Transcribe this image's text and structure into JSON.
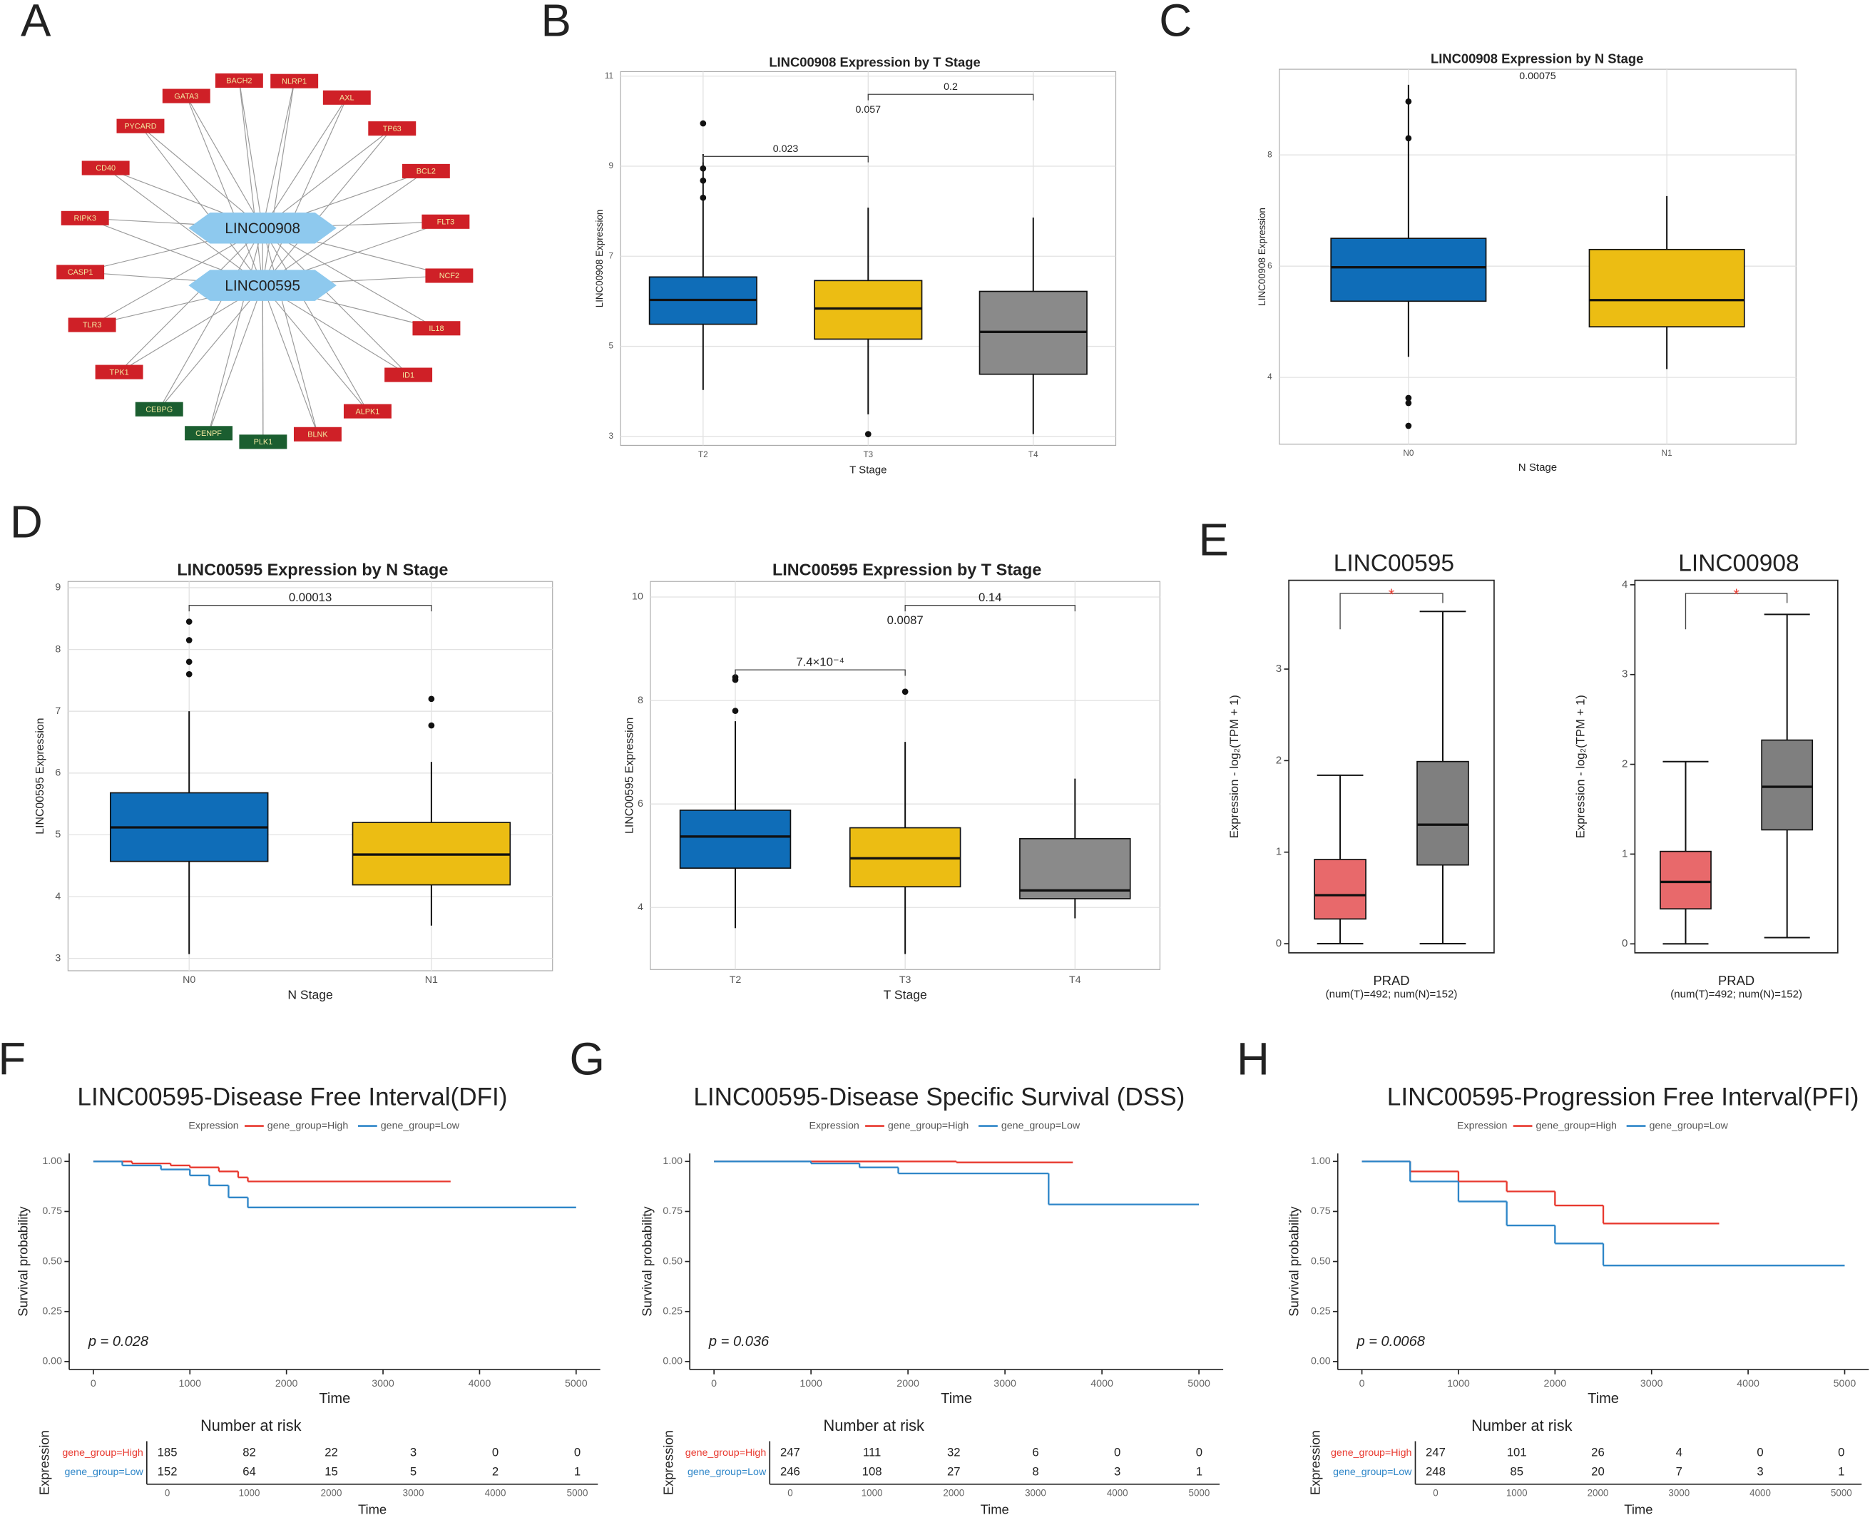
{
  "panel_labels": [
    "A",
    "B",
    "C",
    "D",
    "E",
    "F",
    "G",
    "H"
  ],
  "network": {
    "hubs": [
      "LINC00908",
      "LINC00595"
    ],
    "hub_color": "#8ec9ee",
    "nodes": [
      {
        "label": "BACH2",
        "color": "#cf2027"
      },
      {
        "label": "NLRP1",
        "color": "#cf2027"
      },
      {
        "label": "AXL",
        "color": "#cf2027"
      },
      {
        "label": "TP63",
        "color": "#cf2027"
      },
      {
        "label": "BCL2",
        "color": "#cf2027"
      },
      {
        "label": "FLT3",
        "color": "#cf2027"
      },
      {
        "label": "NCF2",
        "color": "#cf2027"
      },
      {
        "label": "IL18",
        "color": "#cf2027"
      },
      {
        "label": "ID1",
        "color": "#cf2027"
      },
      {
        "label": "ALPK1",
        "color": "#cf2027"
      },
      {
        "label": "BLNK",
        "color": "#cf2027"
      },
      {
        "label": "PLK1",
        "color": "#1b5e30"
      },
      {
        "label": "CENPF",
        "color": "#1b5e30"
      },
      {
        "label": "CEBPG",
        "color": "#1b5e30"
      },
      {
        "label": "TPK1",
        "color": "#cf2027"
      },
      {
        "label": "TLR3",
        "color": "#cf2027"
      },
      {
        "label": "CASP1",
        "color": "#cf2027"
      },
      {
        "label": "RIPK3",
        "color": "#cf2027"
      },
      {
        "label": "CD40",
        "color": "#cf2027"
      },
      {
        "label": "PYCARD",
        "color": "#cf2027"
      },
      {
        "label": "GATA3",
        "color": "#cf2027"
      }
    ]
  },
  "chart_data": [
    {
      "type": "box",
      "title": "LINC00908 Expression by T Stage",
      "xlabel": "T Stage",
      "ylabel": "LINC00908 Expression",
      "categories": [
        "T2",
        "T3",
        "T4"
      ],
      "colors": [
        "#0f6db8",
        "#ecbd13",
        "#8a8a8a"
      ],
      "grid": true,
      "ylim": [
        2.8,
        11.1
      ],
      "yticks": [
        3,
        5,
        7,
        9,
        11
      ],
      "boxes": [
        {
          "q1": 5.49,
          "median": 6.03,
          "q3": 6.54,
          "whisker_low": 4.03,
          "whisker_high": 9.27,
          "outliers": [
            9.95,
            8.95,
            8.68,
            8.3
          ]
        },
        {
          "q1": 5.16,
          "median": 5.84,
          "q3": 6.46,
          "whisker_low": 3.49,
          "whisker_high": 8.08,
          "outliers": [
            3.05
          ]
        },
        {
          "q1": 4.38,
          "median": 5.32,
          "q3": 6.22,
          "whisker_low": 3.05,
          "whisker_high": 7.86,
          "outliers": []
        }
      ],
      "comparisons": [
        {
          "groups": [
            0,
            1
          ],
          "label": "0.023"
        },
        {
          "groups": [
            0,
            2
          ],
          "label": "0.057"
        },
        {
          "groups": [
            1,
            2
          ],
          "label": "0.2"
        }
      ]
    },
    {
      "type": "box",
      "title": "LINC00908 Expression by N Stage",
      "xlabel": "N Stage",
      "ylabel": "LINC00908 Expression",
      "categories": [
        "N0",
        "N1"
      ],
      "colors": [
        "#0f6db8",
        "#ecbd13"
      ],
      "grid": true,
      "ylim": [
        2.8,
        9.54
      ],
      "yticks": [
        4,
        6,
        8
      ],
      "boxes": [
        {
          "q1": 5.37,
          "median": 5.98,
          "q3": 6.5,
          "whisker_low": 4.37,
          "whisker_high": 9.26,
          "outliers": [
            8.96,
            8.3,
            3.63,
            3.54,
            3.13
          ]
        },
        {
          "q1": 4.91,
          "median": 5.39,
          "q3": 6.3,
          "whisker_low": 4.15,
          "whisker_high": 7.26,
          "outliers": []
        }
      ],
      "comparisons": [
        {
          "groups": [
            0,
            1
          ],
          "label": "0.00075"
        }
      ]
    },
    {
      "type": "box",
      "title": "LINC00595 Expression by N Stage",
      "xlabel": "N Stage",
      "ylabel": "LINC00595 Expression",
      "categories": [
        "N0",
        "N1"
      ],
      "colors": [
        "#0f6db8",
        "#ecbd13"
      ],
      "grid": true,
      "ylim": [
        2.8,
        9.1
      ],
      "yticks": [
        3,
        4,
        5,
        6,
        7,
        8,
        9
      ],
      "boxes": [
        {
          "q1": 4.57,
          "median": 5.12,
          "q3": 5.68,
          "whisker_low": 3.07,
          "whisker_high": 7.0,
          "outliers": [
            8.45,
            8.15,
            7.8,
            7.6
          ]
        },
        {
          "q1": 4.19,
          "median": 4.68,
          "q3": 5.2,
          "whisker_low": 3.53,
          "whisker_high": 6.18,
          "outliers": [
            7.2,
            6.77
          ]
        }
      ],
      "comparisons": [
        {
          "groups": [
            0,
            1
          ],
          "label": "0.00013"
        }
      ]
    },
    {
      "type": "box",
      "title": "LINC00595 Expression by T Stage",
      "xlabel": "T Stage",
      "ylabel": "LINC00595 Expression",
      "categories": [
        "T2",
        "T3",
        "T4"
      ],
      "colors": [
        "#0f6db8",
        "#ecbd13",
        "#8a8a8a"
      ],
      "grid": true,
      "ylim": [
        2.8,
        10.3
      ],
      "yticks": [
        4,
        6,
        8,
        10
      ],
      "boxes": [
        {
          "q1": 4.76,
          "median": 5.37,
          "q3": 5.88,
          "whisker_low": 3.6,
          "whisker_high": 7.6,
          "outliers": [
            8.45,
            8.4,
            7.8
          ]
        },
        {
          "q1": 4.4,
          "median": 4.95,
          "q3": 5.54,
          "whisker_low": 3.1,
          "whisker_high": 7.2,
          "outliers": [
            8.17
          ]
        },
        {
          "q1": 4.17,
          "median": 4.33,
          "q3": 5.33,
          "whisker_low": 3.79,
          "whisker_high": 6.49,
          "outliers": []
        }
      ],
      "comparisons": [
        {
          "groups": [
            0,
            1
          ],
          "label": "7.4×10⁻⁴"
        },
        {
          "groups": [
            0,
            2
          ],
          "label": "0.0087"
        },
        {
          "groups": [
            1,
            2
          ],
          "label": "0.14"
        }
      ]
    },
    {
      "type": "box",
      "title": "LINC00595",
      "xlabel": "PRAD",
      "subtitle": "(num(T)=492; num(N)=152)",
      "ylabel": "Expression - log₂(TPM + 1)",
      "categories": [
        null,
        null
      ],
      "colors": [
        "#e8696b",
        "#7f7f7f"
      ],
      "grid": false,
      "ylim": [
        -0.1,
        3.97
      ],
      "yticks": [
        0,
        1,
        2,
        3
      ],
      "boxes": [
        {
          "q1": 0.27,
          "median": 0.53,
          "q3": 0.92,
          "whisker_low": 0,
          "whisker_high": 1.84,
          "outliers": []
        },
        {
          "q1": 0.86,
          "median": 1.3,
          "q3": 1.99,
          "whisker_low": 0,
          "whisker_high": 3.63,
          "outliers": []
        }
      ],
      "comparisons": [
        {
          "groups": [
            0,
            1
          ],
          "label": "*"
        }
      ]
    },
    {
      "type": "box",
      "title": "LINC00908",
      "xlabel": "PRAD",
      "subtitle": "(num(T)=492; num(N)=152)",
      "ylabel": "Expression - log₂(TPM + 1)",
      "categories": [
        null,
        null
      ],
      "colors": [
        "#e8696b",
        "#7f7f7f"
      ],
      "grid": false,
      "ylim": [
        -0.1,
        4.05
      ],
      "yticks": [
        0,
        1,
        2,
        3,
        4
      ],
      "boxes": [
        {
          "q1": 0.39,
          "median": 0.69,
          "q3": 1.03,
          "whisker_low": 0,
          "whisker_high": 2.03,
          "outliers": []
        },
        {
          "q1": 1.27,
          "median": 1.75,
          "q3": 2.27,
          "whisker_low": 0.07,
          "whisker_high": 3.67,
          "outliers": []
        }
      ],
      "comparisons": [
        {
          "groups": [
            0,
            1
          ],
          "label": "*"
        }
      ]
    },
    {
      "type": "survival",
      "title": "LINC00595-Disease Free Interval(DFI)",
      "legend_title": "Expression",
      "xlabel": "Time",
      "ylabel": "Survival probability",
      "annotation": "p = 0.028",
      "xlim": [
        -250,
        5250
      ],
      "xticks": [
        0,
        1000,
        2000,
        3000,
        4000,
        5000
      ],
      "ylim": [
        -0.04,
        1.04
      ],
      "yticks": [
        {
          "value": 0,
          "label": "0.00"
        },
        0.25,
        {
          "value": 0.5,
          "label": "0.50"
        },
        0.75,
        {
          "value": 1,
          "label": "1.00"
        }
      ],
      "series": [
        {
          "name": "gene_group=High",
          "color": "#e8392f",
          "x": [
            0,
            400,
            800,
            1000,
            1300,
            1500,
            1600,
            3700
          ],
          "y": [
            1,
            0.99,
            0.98,
            0.97,
            0.95,
            0.92,
            0.9,
            0.9
          ]
        },
        {
          "name": "gene_group=Low",
          "color": "#2e86c8",
          "x": [
            0,
            300,
            700,
            1000,
            1200,
            1400,
            1600,
            5000
          ],
          "y": [
            1,
            0.98,
            0.96,
            0.93,
            0.88,
            0.82,
            0.77,
            0.77
          ]
        }
      ],
      "risk_table": {
        "title": "Number at risk",
        "xlabel": "Time",
        "ylabel": "Expression",
        "xticks": [
          0,
          1000,
          2000,
          3000,
          4000,
          5000
        ],
        "rows": [
          {
            "name": "gene_group=High",
            "color": "#e8392f",
            "values": [
              185,
              82,
              22,
              3,
              0,
              0
            ]
          },
          {
            "name": "gene_group=Low",
            "color": "#2e86c8",
            "values": [
              152,
              64,
              15,
              5,
              2,
              1
            ]
          }
        ]
      }
    },
    {
      "type": "survival",
      "title": "LINC00595-Disease Specific Survival (DSS)",
      "legend_title": "Expression",
      "xlabel": "Time",
      "ylabel": "Survival probability",
      "annotation": "p = 0.036",
      "xlim": [
        -250,
        5250
      ],
      "xticks": [
        0,
        1000,
        2000,
        3000,
        4000,
        5000
      ],
      "ylim": [
        -0.04,
        1.04
      ],
      "yticks": [
        {
          "value": 0,
          "label": "0.00"
        },
        0.25,
        {
          "value": 0.5,
          "label": "0.50"
        },
        0.75,
        {
          "value": 1,
          "label": "1.00"
        }
      ],
      "series": [
        {
          "name": "gene_group=High",
          "color": "#e8392f",
          "x": [
            0,
            2500,
            3700
          ],
          "y": [
            1,
            0.995,
            0.995
          ]
        },
        {
          "name": "gene_group=Low",
          "color": "#2e86c8",
          "x": [
            0,
            1000,
            1500,
            1900,
            3450,
            5000
          ],
          "y": [
            1,
            0.99,
            0.97,
            0.94,
            0.785,
            0.785
          ]
        }
      ],
      "risk_table": {
        "title": "Number at risk",
        "xlabel": "Time",
        "ylabel": "Expression",
        "xticks": [
          0,
          1000,
          2000,
          3000,
          4000,
          5000
        ],
        "rows": [
          {
            "name": "gene_group=High",
            "color": "#e8392f",
            "values": [
              247,
              111,
              32,
              6,
              0,
              0
            ]
          },
          {
            "name": "gene_group=Low",
            "color": "#2e86c8",
            "values": [
              246,
              108,
              27,
              8,
              3,
              1
            ]
          }
        ]
      }
    },
    {
      "type": "survival",
      "title": "LINC00595-Progression Free Interval(PFI)",
      "legend_title": "Expression",
      "xlabel": "Time",
      "ylabel": "Survival probability",
      "annotation": "p = 0.0068",
      "xlim": [
        -250,
        5250
      ],
      "xticks": [
        0,
        1000,
        2000,
        3000,
        4000,
        5000
      ],
      "ylim": [
        -0.04,
        1.04
      ],
      "yticks": [
        {
          "value": 0,
          "label": "0.00"
        },
        0.25,
        {
          "value": 0.5,
          "label": "0.50"
        },
        0.75,
        {
          "value": 1,
          "label": "1.00"
        }
      ],
      "series": [
        {
          "name": "gene_group=High",
          "color": "#e8392f",
          "x": [
            0,
            500,
            1000,
            1500,
            2000,
            2500,
            3700
          ],
          "y": [
            1,
            0.95,
            0.9,
            0.85,
            0.78,
            0.69,
            0.69
          ]
        },
        {
          "name": "gene_group=Low",
          "color": "#2e86c8",
          "x": [
            0,
            500,
            1000,
            1500,
            2000,
            2500,
            5000
          ],
          "y": [
            1,
            0.9,
            0.8,
            0.68,
            0.59,
            0.48,
            0.48
          ]
        }
      ],
      "risk_table": {
        "title": "Number at risk",
        "xlabel": "Time",
        "ylabel": "Expression",
        "xticks": [
          0,
          1000,
          2000,
          3000,
          4000,
          5000
        ],
        "rows": [
          {
            "name": "gene_group=High",
            "color": "#e8392f",
            "values": [
              247,
              101,
              26,
              4,
              0,
              0
            ]
          },
          {
            "name": "gene_group=Low",
            "color": "#2e86c8",
            "values": [
              248,
              85,
              20,
              7,
              3,
              1
            ]
          }
        ]
      }
    }
  ]
}
